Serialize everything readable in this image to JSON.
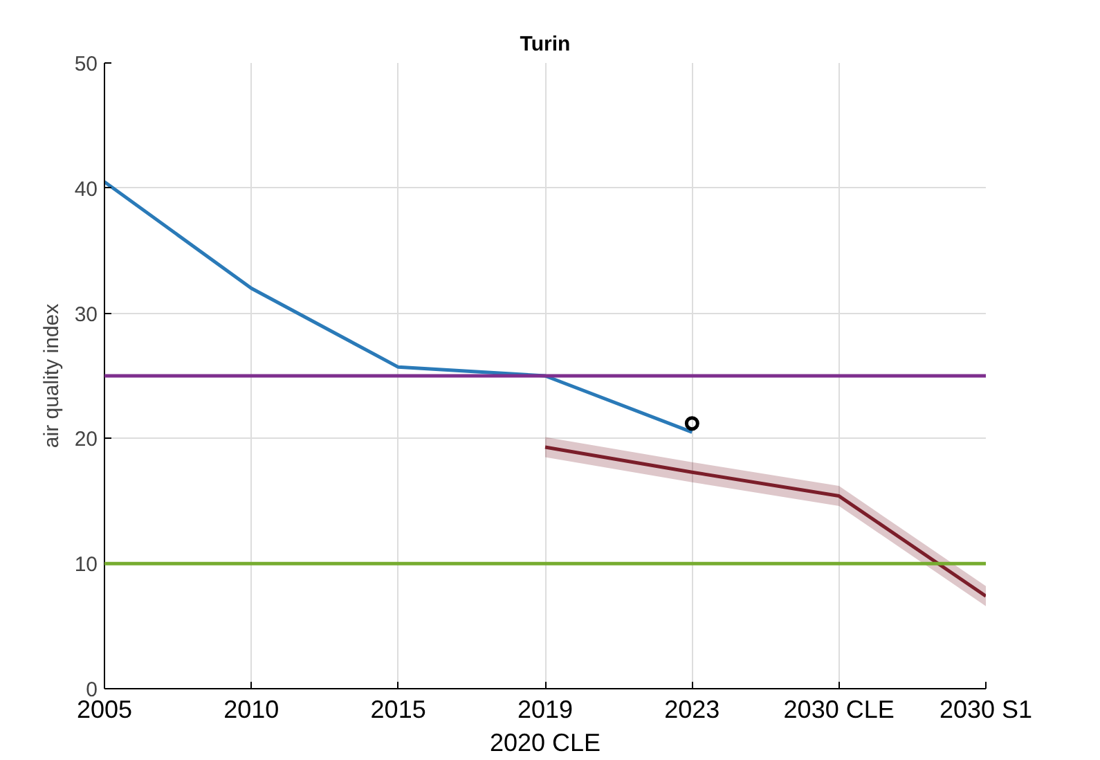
{
  "chart_data": {
    "type": "line",
    "title": "Turin",
    "ylabel": "air quality index",
    "categories": [
      "2005",
      "2010",
      "2015",
      "2019\n2020 CLE",
      "2023",
      "2030 CLE",
      "2030 S1"
    ],
    "series": [
      {
        "color": "#2a7ab8",
        "values": [
          40.5,
          32,
          25.7,
          25,
          20.5,
          null,
          null
        ]
      },
      {
        "type": "scatter",
        "color": "#000000",
        "marker": "circle",
        "values": [
          null,
          null,
          null,
          null,
          21.2,
          null,
          null
        ]
      },
      {
        "color": "#7b1e2a",
        "values": [
          null,
          null,
          null,
          19.3,
          17.3,
          15.4,
          7.4
        ],
        "lower": [
          null,
          null,
          null,
          18.5,
          16.5,
          14.6,
          6.6
        ],
        "upper": [
          null,
          null,
          null,
          20.1,
          18.1,
          16.2,
          8.2
        ]
      }
    ],
    "ref_lines": [
      {
        "axis": "y",
        "value": 25,
        "color": "#7e2f8e"
      },
      {
        "axis": "y",
        "value": 10,
        "color": "#77ac30"
      }
    ],
    "ylim": [
      0,
      50
    ],
    "yticks": [
      0,
      10,
      20,
      30,
      40,
      50
    ],
    "grid": true,
    "marker": "none",
    "line_style": "solid"
  }
}
